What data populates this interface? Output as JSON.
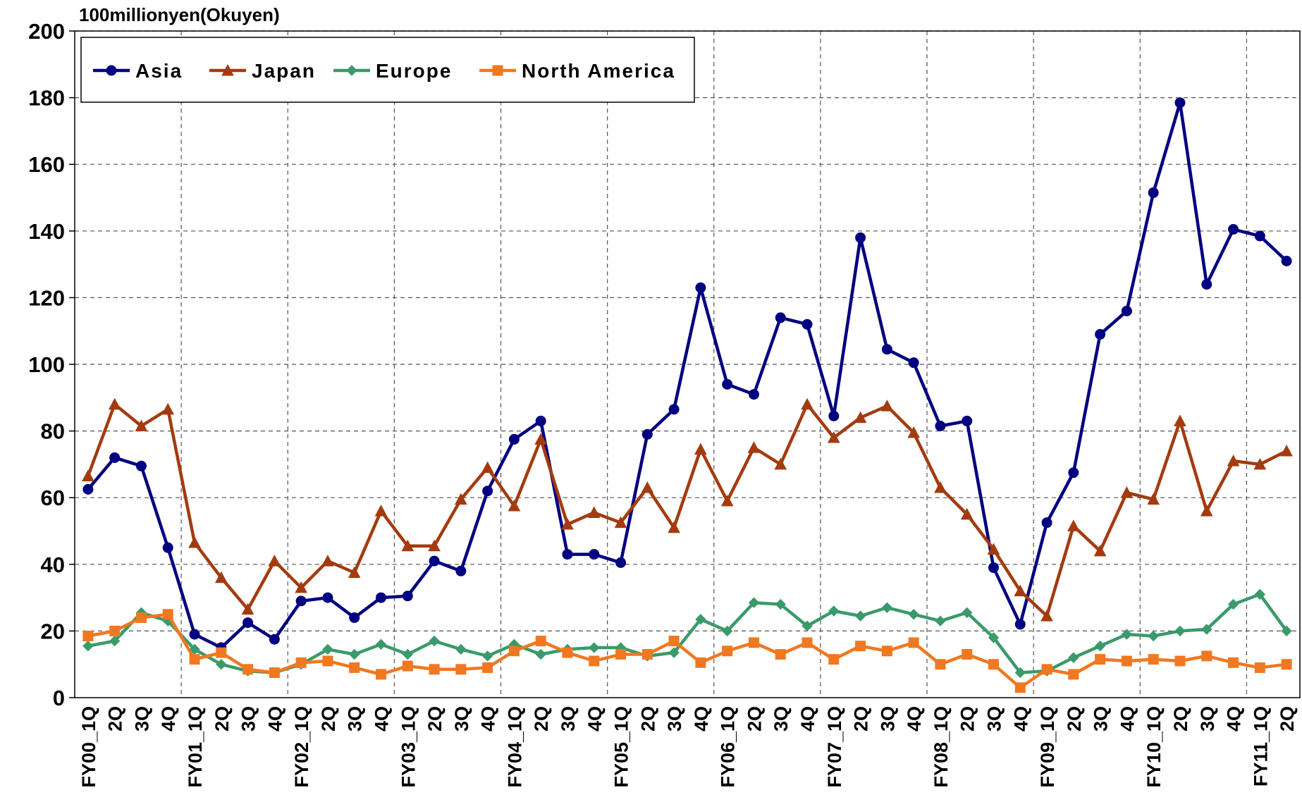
{
  "chart_data": {
    "type": "line",
    "y_label": "100millionyen(Okuyen)",
    "categories": [
      "FY00_1Q",
      "2Q",
      "3Q",
      "4Q",
      "FY01_1Q",
      "2Q",
      "3Q",
      "4Q",
      "FY02_1Q",
      "2Q",
      "3Q",
      "4Q",
      "FY03_1Q",
      "2Q",
      "3Q",
      "4Q",
      "FY04_1Q",
      "2Q",
      "3Q",
      "4Q",
      "FY05_1Q",
      "2Q",
      "3Q",
      "4Q",
      "FY06_1Q",
      "2Q",
      "3Q",
      "4Q",
      "FY07_1Q",
      "2Q",
      "3Q",
      "4Q",
      "FY08_1Q",
      "2Q",
      "3Q",
      "4Q",
      "FY09_1Q",
      "2Q",
      "3Q",
      "4Q",
      "FY10_1Q",
      "2Q",
      "3Q",
      "4Q",
      "FY11_1Q",
      "2Q"
    ],
    "series": [
      {
        "name": "Asia",
        "color": "#000080",
        "marker": "circle",
        "values": [
          62.5,
          72,
          69.5,
          45,
          19,
          15,
          22.5,
          17.5,
          29,
          30,
          24,
          30,
          30.5,
          41,
          38,
          62,
          77.5,
          83,
          43,
          43,
          40.5,
          79,
          86.5,
          123,
          94,
          91,
          114,
          112,
          84.5,
          138,
          104.5,
          100.5,
          81.5,
          83,
          39,
          22,
          52.5,
          67.5,
          109,
          116,
          151.5,
          178.5,
          124,
          140.5,
          138.5,
          131
        ]
      },
      {
        "name": "Japan",
        "color": "#a33b0f",
        "marker": "triangle",
        "values": [
          66.5,
          88,
          81.5,
          86.5,
          46.5,
          36,
          26.5,
          41,
          33,
          41,
          37.5,
          56,
          45.5,
          45.5,
          59.5,
          69,
          57.5,
          77.5,
          52,
          55.5,
          52.5,
          63,
          51,
          74.5,
          59,
          75,
          70,
          88,
          78,
          84,
          87.5,
          79.5,
          63,
          55,
          44.5,
          32,
          24.5,
          51.5,
          44,
          61.5,
          59.5,
          83,
          56,
          71,
          70,
          74
        ]
      },
      {
        "name": "Europe",
        "color": "#3a9a6a",
        "marker": "diamond",
        "values": [
          15.5,
          17,
          25.5,
          23,
          14.5,
          10,
          8,
          7.5,
          10,
          14.5,
          13,
          16,
          13,
          17,
          14.5,
          12.5,
          16,
          13,
          14.5,
          15,
          15,
          12.5,
          13.5,
          23.5,
          20,
          28.5,
          28,
          21.5,
          26,
          24.5,
          27,
          25,
          23,
          25.5,
          18,
          7.5,
          8,
          12,
          15.5,
          19,
          18.5,
          20,
          20.5,
          28,
          31,
          20
        ]
      },
      {
        "name": "North America",
        "color": "#f07820",
        "marker": "square",
        "values": [
          18.5,
          20,
          24,
          25,
          11.5,
          13.5,
          8.5,
          7.5,
          10.5,
          11,
          9,
          7,
          9.5,
          8.5,
          8.5,
          9,
          14,
          17,
          13.5,
          11,
          13,
          13,
          17,
          10.5,
          14,
          16.5,
          13,
          16.5,
          11.5,
          15.5,
          14,
          16.5,
          10,
          13,
          10,
          3,
          8.5,
          7,
          11.5,
          11,
          11.5,
          11,
          12.5,
          10.5,
          9,
          10
        ]
      }
    ],
    "ylim": [
      0,
      200
    ],
    "yticks": [
      0,
      20,
      40,
      60,
      80,
      100,
      120,
      140,
      160,
      180,
      200
    ],
    "grid": true,
    "legend": "top-left"
  }
}
